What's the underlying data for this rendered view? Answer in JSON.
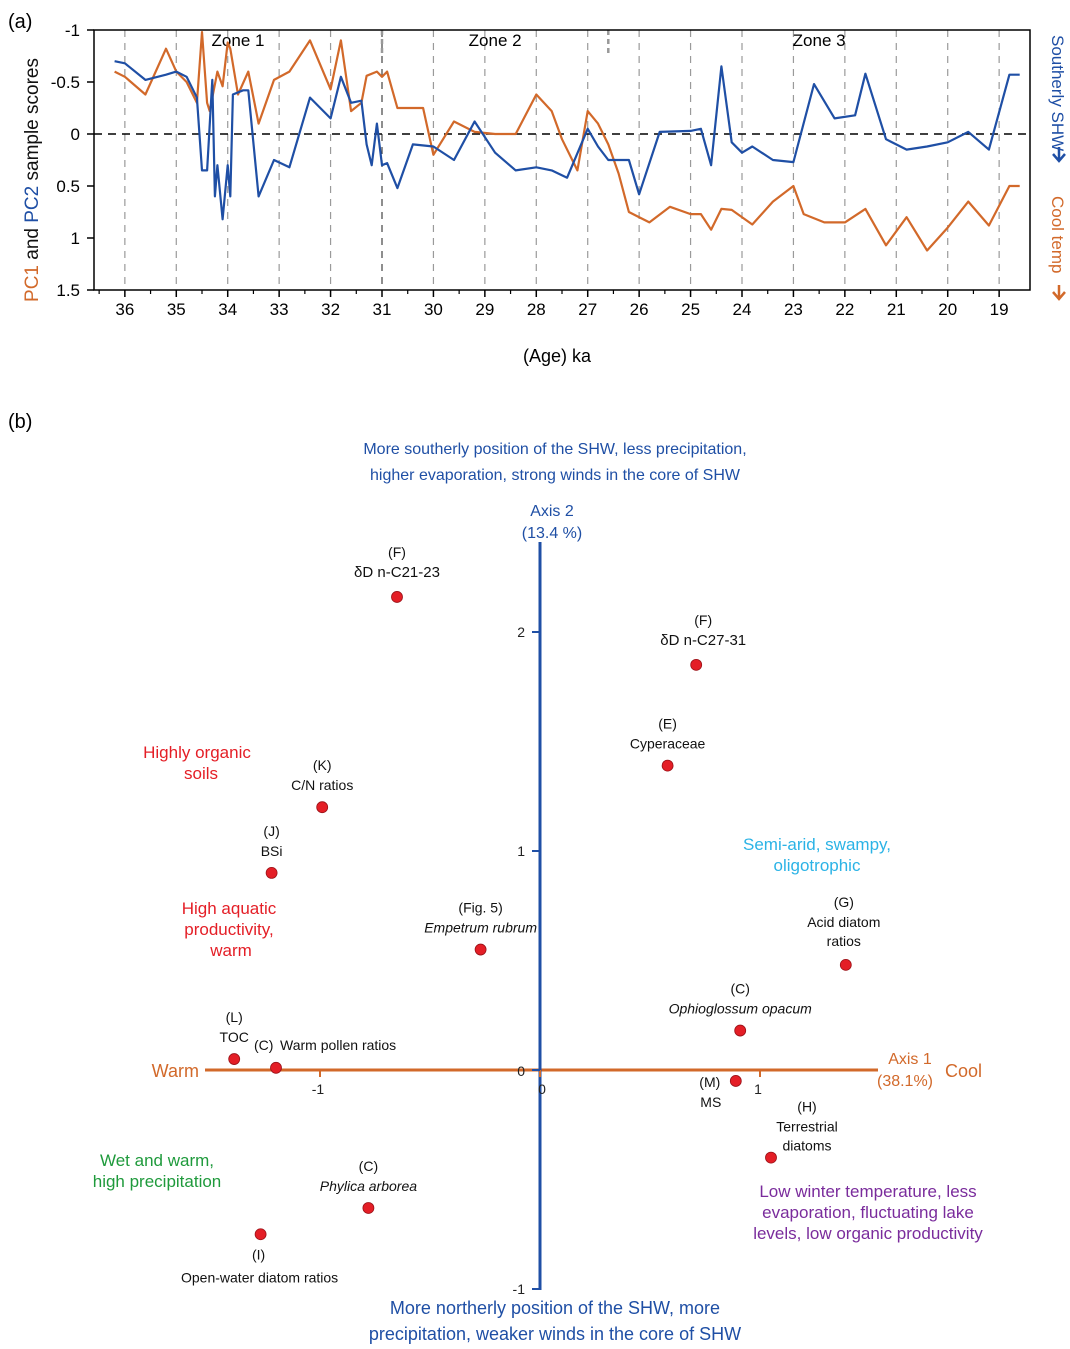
{
  "colors": {
    "pc1": "#d2692a",
    "pc2": "#1f4fa5",
    "red": "#e41e26",
    "green": "#1f9a3c",
    "cyan": "#2bb3e6",
    "purple": "#7a2c9c",
    "point": "#e41e26"
  },
  "panel_a": {
    "panel_label": "(a)"
  },
  "panel_b": {
    "panel_label": "(b)"
  },
  "chart_data": [
    {
      "type": "line",
      "xlabel": "(Age) ka",
      "ylabel_parts": [
        "PC1",
        " and ",
        "PC2",
        " sample scores"
      ],
      "right_labels": {
        "pc2": "Southerly SHW",
        "pc1": "Cool temp"
      },
      "x_ticks": [
        "36",
        "35",
        "34",
        "33",
        "32",
        "31",
        "30",
        "29",
        "28",
        "27",
        "26",
        "25",
        "24",
        "23",
        "22",
        "21",
        "20",
        "19"
      ],
      "y_ticks": [
        "-1",
        "-0.5",
        "0",
        "0.5",
        "1",
        "1.5"
      ],
      "xlim": [
        36.6,
        18.4
      ],
      "ylim": [
        -1,
        1.5
      ],
      "y_inverted": true,
      "zones": [
        {
          "label": "Zone 1",
          "from": 36.6,
          "to": 31
        },
        {
          "label": "Zone 2",
          "from": 31,
          "to": 26.6
        },
        {
          "label": "Zone 3",
          "from": 26.6,
          "to": 18.4
        }
      ],
      "zero_line": "dashed",
      "grid": "vertical dashed at each tick",
      "series": [
        {
          "name": "PC1",
          "color": "#d2692a",
          "x": [
            36.2,
            36.0,
            35.6,
            35.2,
            35.0,
            34.8,
            34.6,
            34.5,
            34.4,
            34.35,
            34.2,
            34.1,
            34.0,
            33.95,
            33.8,
            33.6,
            33.4,
            33.1,
            32.8,
            32.4,
            32.0,
            31.8,
            31.6,
            31.4,
            31.3,
            31.1,
            31.0,
            30.9,
            30.7,
            30.4,
            30.2,
            30.0,
            29.6,
            29.2,
            28.8,
            28.4,
            28.0,
            27.7,
            27.5,
            27.2,
            27.0,
            26.8,
            26.6,
            26.4,
            26.2,
            25.8,
            25.4,
            25.0,
            24.8,
            24.6,
            24.4,
            24.2,
            23.8,
            23.4,
            23.0,
            22.8,
            22.4,
            22.0,
            21.6,
            21.2,
            20.8,
            20.4,
            20.0,
            19.6,
            19.2,
            18.8,
            18.6
          ],
          "y": [
            -0.6,
            -0.55,
            -0.38,
            -0.82,
            -0.6,
            -0.5,
            -0.3,
            -0.98,
            -0.3,
            -0.22,
            -0.6,
            -0.46,
            -0.88,
            -0.82,
            -0.38,
            -0.6,
            -0.1,
            -0.52,
            -0.6,
            -0.9,
            -0.43,
            -0.9,
            -0.22,
            -0.3,
            -0.56,
            -0.6,
            -0.55,
            -0.6,
            -0.25,
            -0.25,
            -0.25,
            0.2,
            -0.12,
            -0.02,
            0.0,
            0.0,
            -0.38,
            -0.22,
            0.05,
            0.35,
            -0.22,
            -0.1,
            0.1,
            0.38,
            0.75,
            0.85,
            0.7,
            0.77,
            0.77,
            0.92,
            0.72,
            0.73,
            0.87,
            0.65,
            0.5,
            0.77,
            0.85,
            0.85,
            0.72,
            1.07,
            0.8,
            1.12,
            0.9,
            0.65,
            0.88,
            0.5,
            0.5
          ]
        },
        {
          "name": "PC2",
          "color": "#1f4fa5",
          "x": [
            36.2,
            36.0,
            35.6,
            35.2,
            35.0,
            34.8,
            34.6,
            34.5,
            34.4,
            34.3,
            34.25,
            34.2,
            34.1,
            34.0,
            33.95,
            33.9,
            33.7,
            33.6,
            33.4,
            33.1,
            32.8,
            32.4,
            32.0,
            31.8,
            31.6,
            31.4,
            31.3,
            31.2,
            31.1,
            31.0,
            30.9,
            30.7,
            30.4,
            30.0,
            29.6,
            29.2,
            28.8,
            28.4,
            28.0,
            27.7,
            27.4,
            27.0,
            26.8,
            26.6,
            26.2,
            26.0,
            25.6,
            25.0,
            24.8,
            24.6,
            24.4,
            24.2,
            24.0,
            23.8,
            23.4,
            23.0,
            22.6,
            22.2,
            21.8,
            21.6,
            21.2,
            20.8,
            20.4,
            20.0,
            19.6,
            19.2,
            18.8,
            18.6
          ],
          "y": [
            -0.7,
            -0.68,
            -0.52,
            -0.57,
            -0.6,
            -0.55,
            -0.35,
            0.35,
            0.35,
            -0.52,
            0.6,
            0.3,
            0.82,
            0.3,
            0.6,
            -0.38,
            -0.42,
            -0.42,
            0.6,
            0.25,
            0.32,
            -0.35,
            -0.15,
            -0.55,
            -0.3,
            -0.32,
            0.1,
            0.3,
            -0.1,
            0.3,
            0.28,
            0.52,
            0.1,
            0.12,
            0.25,
            -0.12,
            0.18,
            0.35,
            0.32,
            0.35,
            0.42,
            -0.05,
            0.12,
            0.25,
            0.25,
            0.58,
            -0.02,
            -0.03,
            -0.05,
            0.3,
            -0.65,
            0.08,
            0.18,
            0.12,
            0.25,
            0.27,
            -0.48,
            -0.15,
            -0.18,
            -0.58,
            0.05,
            0.15,
            0.12,
            0.08,
            -0.02,
            0.15,
            -0.57,
            -0.57
          ]
        }
      ]
    },
    {
      "type": "scatter",
      "xlabel": "Axis 1",
      "xlabel_pct": "(38.1%)",
      "ylabel": "Axis 2",
      "ylabel_pct": "(13.4 %)",
      "x_ticks": [
        "-1",
        "0",
        "1"
      ],
      "y_ticks": [
        "-1",
        "0",
        "1",
        "2"
      ],
      "x_tick_values": [
        -1,
        0,
        1
      ],
      "y_tick_values": [
        -1,
        0,
        1,
        2
      ],
      "x_end_labels": {
        "left": "Warm",
        "right": "Cool"
      },
      "top_note": [
        "More southerly position of the SHW, less precipitation,",
        "higher evaporation, strong winds in the core of SHW"
      ],
      "bottom_note": [
        "More northerly position of the SHW, more",
        "precipitation, weaker winds in the core of SHW"
      ],
      "region_notes": [
        {
          "lines": [
            "Highly organic",
            "soils"
          ],
          "color": "red"
        },
        {
          "lines": [
            "High aquatic",
            "productivity,",
            "warm"
          ],
          "color": "red"
        },
        {
          "lines": [
            "Wet and warm,",
            "high precipitation"
          ],
          "color": "green"
        },
        {
          "lines": [
            "Semi-arid, swampy,",
            "oligotrophic"
          ],
          "color": "cyan"
        },
        {
          "lines": [
            "Low winter temperature, less",
            "evaporation, fluctuating lake",
            "levels, low organic productivity"
          ],
          "color": "purple"
        }
      ],
      "points": [
        {
          "code": "(F)",
          "label": "δD n-C21-23",
          "x": -0.65,
          "y": 2.16
        },
        {
          "code": "(F)",
          "label": "δD n-C27-31",
          "x": 0.71,
          "y": 1.85
        },
        {
          "code": "(E)",
          "label": "Cyperaceae",
          "x": 0.58,
          "y": 1.39
        },
        {
          "code": "(K)",
          "label": "C/N ratios",
          "x": -0.99,
          "y": 1.2
        },
        {
          "code": "(J)",
          "label": "BSi",
          "x": -1.22,
          "y": 0.9
        },
        {
          "code": "(Fig. 5)",
          "label": "Empetrum rubrum",
          "x": -0.27,
          "y": 0.55
        },
        {
          "code": "(G)",
          "label": "Acid diatom ratios",
          "x": 1.39,
          "y": 0.48
        },
        {
          "code": "(C)",
          "label": "Ophioglossum opacum",
          "x": 0.91,
          "y": 0.18
        },
        {
          "code": "(L)",
          "label": "TOC",
          "x": -1.39,
          "y": 0.05
        },
        {
          "code": "(C)",
          "label": "Warm pollen ratios",
          "x": -1.2,
          "y": 0.01
        },
        {
          "code": "(M)",
          "label": "MS",
          "x": 0.89,
          "y": -0.05
        },
        {
          "code": "(H)",
          "label": "Terrestrial diatoms",
          "x": 1.05,
          "y": -0.4
        },
        {
          "code": "(C)",
          "label": "Phylica arborea",
          "x": -0.78,
          "y": -0.63
        },
        {
          "code": "(I)",
          "label": "Open-water diatom ratios",
          "x": -1.27,
          "y": -0.75
        }
      ]
    }
  ]
}
